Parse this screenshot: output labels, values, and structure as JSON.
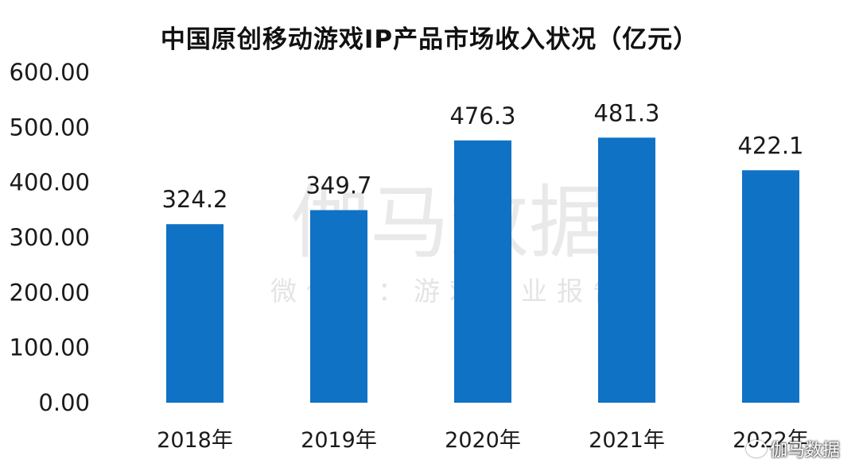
{
  "chart_data": {
    "type": "bar",
    "title": "中国原创移动游戏IP产品市场收入状况（亿元）",
    "categories": [
      "2018年",
      "2019年",
      "2020年",
      "2021年",
      "2022年"
    ],
    "values": [
      324.2,
      349.7,
      476.3,
      481.3,
      422.1
    ],
    "data_labels": [
      "324.2",
      "349.7",
      "476.3",
      "481.3",
      "422.1"
    ],
    "yticks": [
      "0.00",
      "100.00",
      "200.00",
      "300.00",
      "400.00",
      "500.00",
      "600.00"
    ],
    "ylim": [
      0,
      600
    ],
    "grid": false,
    "legend": false,
    "bar_color": "#0f72c4"
  },
  "watermark": {
    "main": "伽马数据",
    "sub": "微信号：游戏产业报告",
    "corner": "伽马数据"
  }
}
